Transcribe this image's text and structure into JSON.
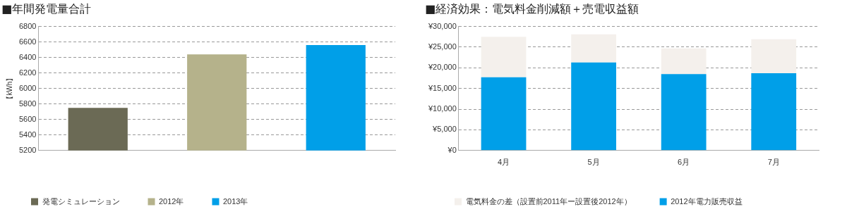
{
  "chart_data": [
    {
      "type": "bar",
      "title": "■年間発電量合計",
      "ylabel": "【kWh】",
      "categories": [
        null,
        null,
        null
      ],
      "series": [
        {
          "name": "発電シミュレーション",
          "color": "#6b6a55",
          "values": [
            5750,
            null,
            null
          ]
        },
        {
          "name": "2012年",
          "color": "#b5b28b",
          "values": [
            null,
            6440,
            null
          ]
        },
        {
          "name": "2013年",
          "color": "#009fe8",
          "values": [
            null,
            null,
            6560
          ]
        }
      ],
      "ylim": [
        5200,
        6800
      ],
      "yticks": [
        5200,
        5400,
        5600,
        5800,
        6000,
        6200,
        6400,
        6600,
        6800
      ],
      "grid": "y",
      "legend": "bottom"
    },
    {
      "type": "bar",
      "title": "■経済効果：電気料金削減額＋売電収益額",
      "categories": [
        "4月",
        "5月",
        "6月",
        "7月"
      ],
      "stacked": true,
      "series": [
        {
          "name": "2012年電力販売収益",
          "color": "#009fe8",
          "values": [
            17700,
            21300,
            18500,
            18700
          ]
        },
        {
          "name": "電気料金の差（設置前2011年ー設置後2012年）",
          "color": "#f4f0ec",
          "values": [
            9800,
            6800,
            6200,
            8200
          ]
        }
      ],
      "ylim": [
        0,
        30000
      ],
      "yticks": [
        {
          "value": 0,
          "label": "¥0"
        },
        {
          "value": 5000,
          "label": "¥5,000"
        },
        {
          "value": 10000,
          "label": "¥10,000"
        },
        {
          "value": 15000,
          "label": "¥15,000"
        },
        {
          "value": 20000,
          "label": "¥20,000"
        },
        {
          "value": 25000,
          "label": "¥25,000"
        },
        {
          "value": 30000,
          "label": "¥30,000"
        }
      ],
      "grid": "y",
      "legend": "bottom"
    }
  ]
}
